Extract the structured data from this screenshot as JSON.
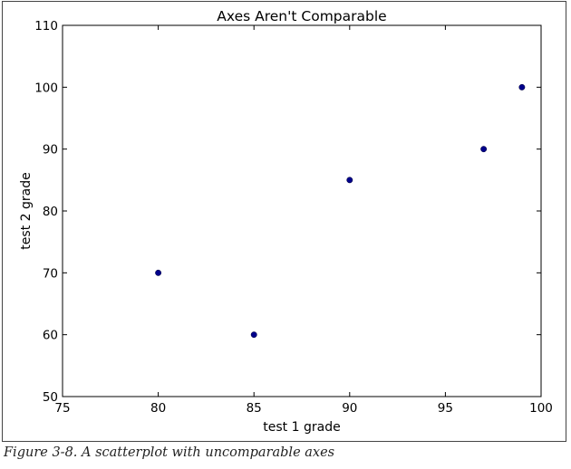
{
  "chart_data": {
    "type": "scatter",
    "title": "Axes Aren't Comparable",
    "xlabel": "test 1 grade",
    "ylabel": "test 2 grade",
    "xlim": [
      75,
      100
    ],
    "ylim": [
      50,
      110
    ],
    "xticks": [
      75,
      80,
      85,
      90,
      95,
      100
    ],
    "yticks": [
      50,
      60,
      70,
      80,
      90,
      100,
      110
    ],
    "grid": false,
    "points": [
      {
        "x": 99,
        "y": 100
      },
      {
        "x": 90,
        "y": 85
      },
      {
        "x": 85,
        "y": 60
      },
      {
        "x": 97,
        "y": 90
      },
      {
        "x": 80,
        "y": 70
      }
    ],
    "marker_color": "#00008b"
  },
  "caption": "Figure 3-8. A scatterplot with uncomparable axes"
}
